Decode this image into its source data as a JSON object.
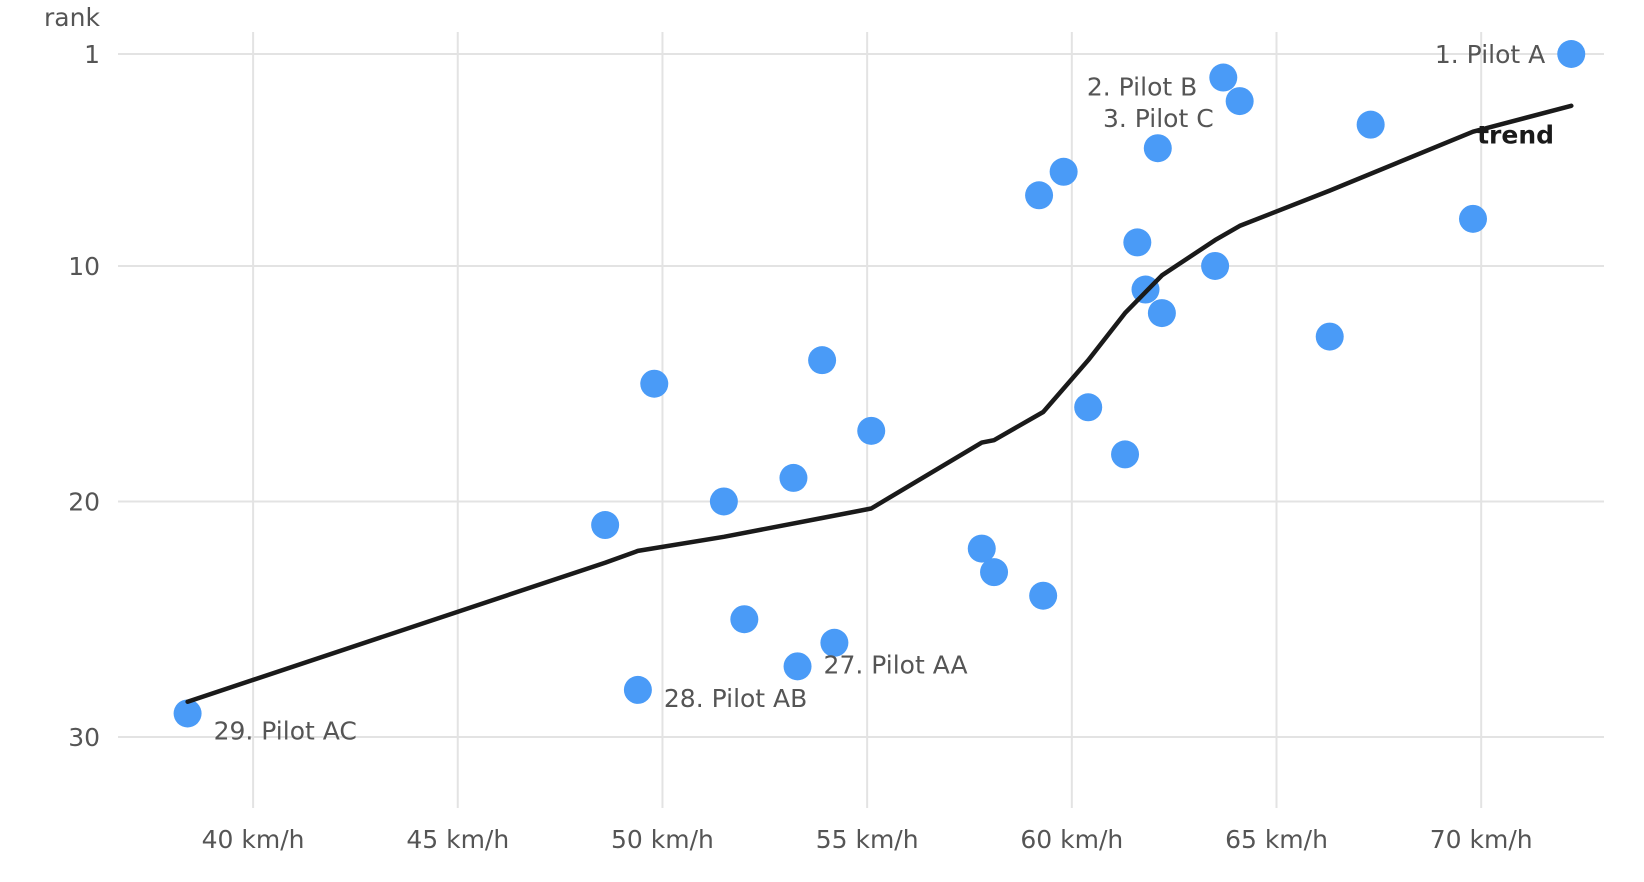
{
  "chart_data": {
    "type": "scatter",
    "title": "",
    "xlabel": "",
    "ylabel": "rank",
    "x_unit": "km/h",
    "xlim": [
      36.7,
      73.0
    ],
    "ylim": [
      1,
      30
    ],
    "y_reversed": true,
    "x_ticks": [
      40,
      45,
      50,
      55,
      60,
      65,
      70
    ],
    "x_tick_labels": [
      "40 km/h",
      "45 km/h",
      "50 km/h",
      "55 km/h",
      "60 km/h",
      "65 km/h",
      "70 km/h"
    ],
    "y_ticks": [
      1,
      10,
      20,
      30
    ],
    "y_tick_labels": [
      "1",
      "10",
      "20",
      "30"
    ],
    "grid": true,
    "point_color": "#4a9bf7",
    "trend_color": "#1a1a1a",
    "points": [
      {
        "x": 72.2,
        "y": 1,
        "label": "1. Pilot A"
      },
      {
        "x": 63.7,
        "y": 2,
        "label": "2. Pilot B"
      },
      {
        "x": 64.1,
        "y": 3,
        "label": "3. Pilot C"
      },
      {
        "x": 67.3,
        "y": 4,
        "label": ""
      },
      {
        "x": 62.1,
        "y": 5,
        "label": ""
      },
      {
        "x": 59.8,
        "y": 6,
        "label": ""
      },
      {
        "x": 59.2,
        "y": 7,
        "label": ""
      },
      {
        "x": 69.8,
        "y": 8,
        "label": ""
      },
      {
        "x": 61.6,
        "y": 9,
        "label": ""
      },
      {
        "x": 63.5,
        "y": 10,
        "label": ""
      },
      {
        "x": 61.8,
        "y": 11,
        "label": ""
      },
      {
        "x": 62.2,
        "y": 12,
        "label": ""
      },
      {
        "x": 66.3,
        "y": 13,
        "label": ""
      },
      {
        "x": 53.9,
        "y": 14,
        "label": ""
      },
      {
        "x": 49.8,
        "y": 15,
        "label": ""
      },
      {
        "x": 60.4,
        "y": 16,
        "label": ""
      },
      {
        "x": 55.1,
        "y": 17,
        "label": ""
      },
      {
        "x": 61.3,
        "y": 18,
        "label": ""
      },
      {
        "x": 53.2,
        "y": 19,
        "label": ""
      },
      {
        "x": 51.5,
        "y": 20,
        "label": ""
      },
      {
        "x": 48.6,
        "y": 21,
        "label": ""
      },
      {
        "x": 57.8,
        "y": 22,
        "label": ""
      },
      {
        "x": 58.1,
        "y": 23,
        "label": ""
      },
      {
        "x": 59.3,
        "y": 24,
        "label": ""
      },
      {
        "x": 52.0,
        "y": 25,
        "label": ""
      },
      {
        "x": 54.2,
        "y": 26,
        "label": ""
      },
      {
        "x": 53.3,
        "y": 27,
        "label": "27. Pilot AA"
      },
      {
        "x": 49.4,
        "y": 28,
        "label": "28. Pilot AB"
      },
      {
        "x": 38.4,
        "y": 29,
        "label": "29. Pilot AC"
      }
    ],
    "trend": {
      "name": "trend",
      "x": [
        38.4,
        48.6,
        49.4,
        51.5,
        53.9,
        55.1,
        57.8,
        58.1,
        59.3,
        60.4,
        61.3,
        62.2,
        63.5,
        64.1,
        66.3,
        69.8,
        72.2
      ],
      "y": [
        28.5,
        22.6,
        22.1,
        21.5,
        20.7,
        20.3,
        17.5,
        17.4,
        16.2,
        14.0,
        12.0,
        10.4,
        8.9,
        8.3,
        6.8,
        4.3,
        3.2
      ]
    }
  }
}
